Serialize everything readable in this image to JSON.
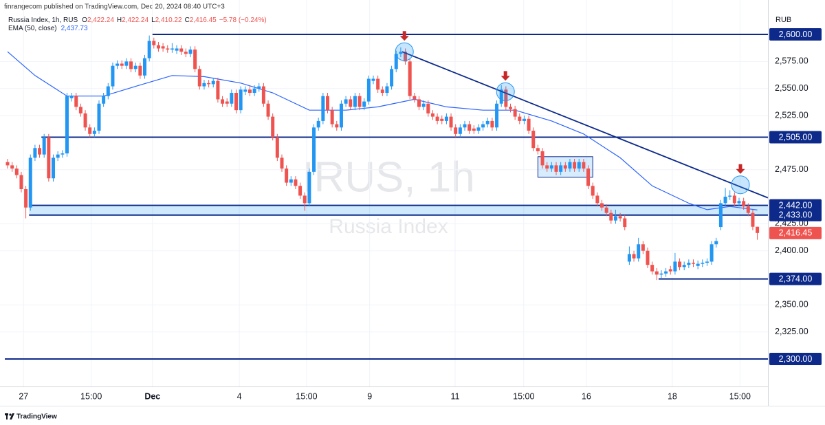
{
  "chart_data": {
    "type": "candlestick",
    "publisher": "finrangecom published on TradingView.com, Dec 20, 2024 08:40 UTC+3",
    "symbol": "Russia Index, 1h, RUS",
    "ohlc_legend": [
      {
        "key": "O",
        "value": "2,422.24"
      },
      {
        "key": "H",
        "value": "2,422.24"
      },
      {
        "key": "L",
        "value": "2,410.22"
      },
      {
        "key": "C",
        "value": "2,416.45"
      }
    ],
    "change": "−5.78 (−0.24%)",
    "watermark": [
      "IRUS, 1h",
      "Russia Index"
    ],
    "y_axis_title": "RUB",
    "brand": "TradingView",
    "ylim": [
      2274.6,
      2631.8
    ],
    "yticks": [
      {
        "value": 2325,
        "label": "2,325.00"
      },
      {
        "value": 2350,
        "label": "2,350.00"
      },
      {
        "value": 2400,
        "label": "2,400.00"
      },
      {
        "value": 2425,
        "label": "2,425.00"
      },
      {
        "value": 2475,
        "label": "2,475.00"
      },
      {
        "value": 2525,
        "label": "2,525.00"
      },
      {
        "value": 2550,
        "label": "2,550.00"
      },
      {
        "value": 2575,
        "label": "2,575.00"
      }
    ],
    "xticks": [
      {
        "value": 3.5,
        "label": "27"
      },
      {
        "value": 18.3,
        "label": "15:00"
      },
      {
        "value": 31.7,
        "label": "Dec"
      },
      {
        "value": 50.7,
        "label": "4"
      },
      {
        "value": 65.4,
        "label": "15:00"
      },
      {
        "value": 79.2,
        "label": "9"
      },
      {
        "value": 97.9,
        "label": "11"
      },
      {
        "value": 112.9,
        "label": "15:00"
      },
      {
        "value": 126.6,
        "label": "16"
      },
      {
        "value": 145.4,
        "label": "18"
      },
      {
        "value": 160.2,
        "label": "15:00"
      }
    ],
    "grid": true,
    "up_color": "#2196f3",
    "down_color": "#ef5350",
    "candles": [
      [
        2482,
        2485,
        2476,
        2479
      ],
      [
        2479,
        2482,
        2473,
        2476
      ],
      [
        2476,
        2479,
        2467,
        2470
      ],
      [
        2470,
        2473,
        2454,
        2457
      ],
      [
        2457,
        2460,
        2430,
        2440
      ],
      [
        2440,
        2489,
        2437,
        2486
      ],
      [
        2486,
        2498,
        2483,
        2495
      ],
      [
        2495,
        2498,
        2486,
        2489
      ],
      [
        2489,
        2508,
        2486,
        2505
      ],
      [
        2505,
        2508,
        2464,
        2467
      ],
      [
        2467,
        2489,
        2464,
        2486
      ],
      [
        2486,
        2492,
        2483,
        2489
      ],
      [
        2489,
        2493,
        2486,
        2490
      ],
      [
        2490,
        2546,
        2487,
        2543
      ],
      [
        2541,
        2546,
        2538,
        2543
      ],
      [
        2543,
        2546,
        2530,
        2533
      ],
      [
        2533,
        2536,
        2524,
        2527
      ],
      [
        2527,
        2530,
        2511,
        2514
      ],
      [
        2514,
        2517,
        2505,
        2508
      ],
      [
        2508,
        2514,
        2505,
        2511
      ],
      [
        2511,
        2539,
        2508,
        2536
      ],
      [
        2536,
        2546,
        2533,
        2543
      ],
      [
        2543,
        2555,
        2540,
        2552
      ],
      [
        2552,
        2574,
        2549,
        2571
      ],
      [
        2571,
        2576,
        2568,
        2573
      ],
      [
        2573,
        2576,
        2568,
        2571
      ],
      [
        2571,
        2578,
        2568,
        2575
      ],
      [
        2575,
        2578,
        2565,
        2568
      ],
      [
        2568,
        2574,
        2565,
        2571
      ],
      [
        2571,
        2574,
        2559,
        2562
      ],
      [
        2562,
        2581,
        2559,
        2578
      ],
      [
        2578,
        2599,
        2575,
        2594
      ],
      [
        2594,
        2597,
        2587,
        2590
      ],
      [
        2590,
        2593,
        2584,
        2587
      ],
      [
        2589,
        2592,
        2584,
        2587
      ],
      [
        2587,
        2590,
        2583,
        2586
      ],
      [
        2586,
        2592,
        2583,
        2587
      ],
      [
        2585,
        2590,
        2582,
        2587
      ],
      [
        2587,
        2590,
        2581,
        2584
      ],
      [
        2584,
        2587,
        2579,
        2582
      ],
      [
        2582,
        2589,
        2579,
        2586
      ],
      [
        2586,
        2589,
        2565,
        2568
      ],
      [
        2568,
        2571,
        2549,
        2552
      ],
      [
        2552,
        2558,
        2549,
        2555
      ],
      [
        2555,
        2558,
        2551,
        2554
      ],
      [
        2554,
        2560,
        2551,
        2557
      ],
      [
        2557,
        2560,
        2537,
        2540
      ],
      [
        2540,
        2543,
        2533,
        2536
      ],
      [
        2538,
        2541,
        2533,
        2536
      ],
      [
        2536,
        2549,
        2533,
        2546
      ],
      [
        2546,
        2549,
        2527,
        2530
      ],
      [
        2530,
        2552,
        2527,
        2549
      ],
      [
        2547,
        2552,
        2544,
        2549
      ],
      [
        2549,
        2552,
        2543,
        2546
      ],
      [
        2546,
        2553,
        2543,
        2550
      ],
      [
        2550,
        2555,
        2547,
        2552
      ],
      [
        2552,
        2555,
        2533,
        2536
      ],
      [
        2536,
        2539,
        2521,
        2524
      ],
      [
        2524,
        2527,
        2502,
        2505
      ],
      [
        2505,
        2508,
        2483,
        2486
      ],
      [
        2486,
        2489,
        2473,
        2476
      ],
      [
        2476,
        2479,
        2460,
        2463
      ],
      [
        2463,
        2469,
        2460,
        2466
      ],
      [
        2466,
        2469,
        2457,
        2460
      ],
      [
        2460,
        2463,
        2448,
        2451
      ],
      [
        2451,
        2454,
        2437,
        2444
      ],
      [
        2444,
        2476,
        2441,
        2473
      ],
      [
        2473,
        2517,
        2470,
        2514
      ],
      [
        2514,
        2523,
        2511,
        2520
      ],
      [
        2520,
        2546,
        2517,
        2543
      ],
      [
        2543,
        2546,
        2527,
        2530
      ],
      [
        2530,
        2533,
        2514,
        2517
      ],
      [
        2517,
        2520,
        2511,
        2514
      ],
      [
        2514,
        2539,
        2511,
        2536
      ],
      [
        2536,
        2543,
        2533,
        2540
      ],
      [
        2540,
        2543,
        2530,
        2533
      ],
      [
        2533,
        2546,
        2530,
        2543
      ],
      [
        2543,
        2546,
        2530,
        2533
      ],
      [
        2533,
        2541,
        2530,
        2538
      ],
      [
        2538,
        2562,
        2535,
        2559
      ],
      [
        2557,
        2562,
        2554,
        2559
      ],
      [
        2559,
        2562,
        2546,
        2549
      ],
      [
        2549,
        2552,
        2543,
        2546
      ],
      [
        2546,
        2555,
        2543,
        2552
      ],
      [
        2552,
        2571,
        2549,
        2568
      ],
      [
        2568,
        2585,
        2565,
        2582
      ],
      [
        2582,
        2588,
        2579,
        2584
      ],
      [
        2584,
        2587,
        2572,
        2575
      ],
      [
        2575,
        2578,
        2540,
        2543
      ],
      [
        2543,
        2546,
        2537,
        2540
      ],
      [
        2540,
        2543,
        2530,
        2533
      ],
      [
        2533,
        2539,
        2530,
        2536
      ],
      [
        2536,
        2539,
        2524,
        2527
      ],
      [
        2527,
        2530,
        2521,
        2524
      ],
      [
        2524,
        2527,
        2517,
        2520
      ],
      [
        2522,
        2525,
        2517,
        2520
      ],
      [
        2520,
        2527,
        2517,
        2524
      ],
      [
        2524,
        2527,
        2511,
        2514
      ],
      [
        2514,
        2517,
        2505,
        2508
      ],
      [
        2508,
        2517,
        2505,
        2514
      ],
      [
        2514,
        2520,
        2511,
        2517
      ],
      [
        2517,
        2520,
        2508,
        2511
      ],
      [
        2513,
        2516,
        2508,
        2511
      ],
      [
        2511,
        2517,
        2508,
        2514
      ],
      [
        2514,
        2520,
        2511,
        2517
      ],
      [
        2517,
        2523,
        2514,
        2520
      ],
      [
        2520,
        2523,
        2511,
        2514
      ],
      [
        2514,
        2539,
        2511,
        2536
      ],
      [
        2536,
        2553,
        2533,
        2549
      ],
      [
        2549,
        2552,
        2530,
        2533
      ],
      [
        2533,
        2536,
        2528,
        2531
      ],
      [
        2531,
        2534,
        2521,
        2524
      ],
      [
        2524,
        2527,
        2517,
        2520
      ],
      [
        2520,
        2525,
        2517,
        2522
      ],
      [
        2522,
        2525,
        2508,
        2511
      ],
      [
        2511,
        2514,
        2492,
        2495
      ],
      [
        2495,
        2498,
        2489,
        2492
      ],
      [
        2492,
        2495,
        2476,
        2479
      ],
      [
        2479,
        2482,
        2473,
        2476
      ],
      [
        2476,
        2482,
        2473,
        2479
      ],
      [
        2479,
        2482,
        2470,
        2473
      ],
      [
        2473,
        2482,
        2470,
        2479
      ],
      [
        2479,
        2482,
        2473,
        2476
      ],
      [
        2476,
        2485,
        2473,
        2482
      ],
      [
        2482,
        2485,
        2473,
        2476
      ],
      [
        2476,
        2485,
        2473,
        2482
      ],
      [
        2482,
        2485,
        2473,
        2476
      ],
      [
        2476,
        2479,
        2457,
        2460
      ],
      [
        2460,
        2463,
        2448,
        2451
      ],
      [
        2451,
        2454,
        2441,
        2444
      ],
      [
        2444,
        2447,
        2437,
        2440
      ],
      [
        2440,
        2443,
        2432,
        2435
      ],
      [
        2435,
        2438,
        2425,
        2428
      ],
      [
        2428,
        2438,
        2425,
        2432
      ],
      [
        2432,
        2435,
        2427,
        2430
      ],
      [
        2430,
        2433,
        2419,
        2422
      ],
      [
        2390,
        2404,
        2387,
        2397
      ],
      [
        2397,
        2400,
        2390,
        2393
      ],
      [
        2393,
        2412,
        2390,
        2406
      ],
      [
        2406,
        2409,
        2397,
        2400
      ],
      [
        2400,
        2403,
        2384,
        2387
      ],
      [
        2387,
        2390,
        2378,
        2381
      ],
      [
        2381,
        2384,
        2373,
        2378
      ],
      [
        2378,
        2382,
        2374,
        2379
      ],
      [
        2379,
        2384,
        2376,
        2381
      ],
      [
        2383,
        2386,
        2378,
        2381
      ],
      [
        2381,
        2398,
        2378,
        2390
      ],
      [
        2390,
        2393,
        2382,
        2385
      ],
      [
        2385,
        2390,
        2382,
        2387
      ],
      [
        2387,
        2392,
        2384,
        2389
      ],
      [
        2389,
        2392,
        2385,
        2388
      ],
      [
        2386,
        2391,
        2383,
        2388
      ],
      [
        2388,
        2392,
        2385,
        2389
      ],
      [
        2389,
        2393,
        2386,
        2390
      ],
      [
        2390,
        2409,
        2387,
        2406
      ],
      [
        2406,
        2412,
        2403,
        2409
      ],
      [
        2422,
        2447,
        2419,
        2444
      ],
      [
        2444,
        2458,
        2441,
        2450
      ],
      [
        2450,
        2456,
        2447,
        2451
      ],
      [
        2451,
        2454,
        2441,
        2444
      ],
      [
        2444,
        2449,
        2441,
        2446
      ],
      [
        2446,
        2449,
        2438,
        2441
      ],
      [
        2441,
        2444,
        2432,
        2435
      ],
      [
        2435,
        2438,
        2419,
        2422.24
      ],
      [
        2422.24,
        2422.24,
        2410.22,
        2416.45
      ]
    ],
    "indicator": {
      "name": "EMA (50, close)",
      "label": "2,437.73",
      "color": "#2962ff",
      "x": [
        0,
        6,
        13,
        21,
        28,
        36,
        43,
        51,
        58,
        66,
        74,
        81,
        89,
        96,
        104,
        111,
        119,
        126,
        134,
        141,
        149,
        153,
        158,
        164
      ],
      "values": [
        2584,
        2562,
        2543,
        2543,
        2552,
        2562,
        2561,
        2555,
        2546,
        2530,
        2530,
        2533,
        2540,
        2533,
        2530,
        2530,
        2520,
        2508,
        2486,
        2460,
        2444,
        2438,
        2441,
        2437.73
      ]
    },
    "level_color": "#0d2a8a",
    "levels": [
      {
        "value": 2600,
        "label": "2,600.00",
        "start": 31.7
      },
      {
        "value": 2505,
        "label": "2,505.00",
        "start": 7.4
      },
      {
        "value": 2442,
        "label": "2,442.00",
        "start": 4.7
      },
      {
        "value": 2433,
        "label": "2,433.00",
        "start": 4.7
      },
      {
        "value": 2374,
        "label": "2,374.00",
        "start": 142.4
      },
      {
        "value": 2300,
        "label": "2,300.00",
        "start": -0.6
      }
    ],
    "last_price": {
      "value": 2416.45,
      "label": "2,416.45"
    },
    "trendline": {
      "x": [
        86.3,
        166.3
      ],
      "values": [
        2584,
        2449
      ]
    },
    "markers": [
      {
        "x": 86.8,
        "value": 2584
      },
      {
        "x": 108.9,
        "value": 2547
      },
      {
        "x": 160.3,
        "value": 2461
      }
    ],
    "box": {
      "x": [
        116,
        128
      ],
      "values": [
        2487,
        2468
      ]
    }
  }
}
